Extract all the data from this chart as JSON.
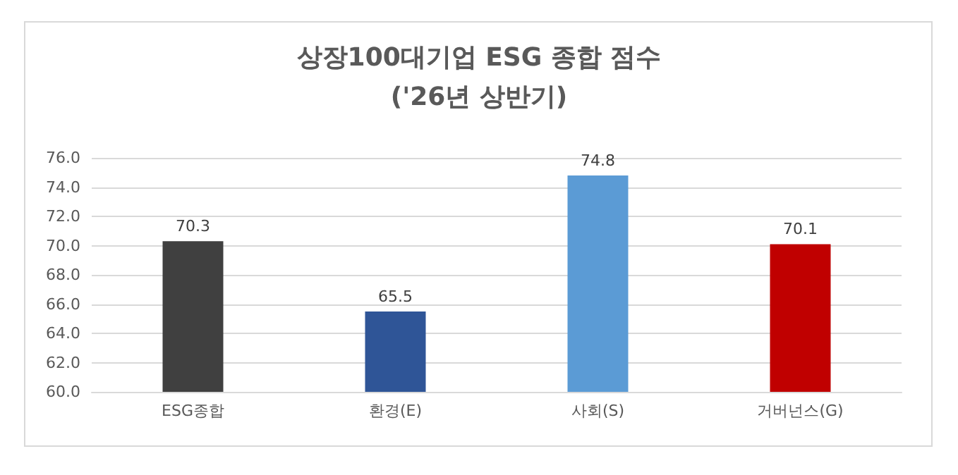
{
  "chart_data": {
    "type": "bar",
    "title": "상장100대기업 ESG 종합 점수",
    "subtitle": "('26년 상반기)",
    "categories": [
      "ESG종합",
      "환경(E)",
      "사회(S)",
      "거버넌스(G)"
    ],
    "values": [
      70.3,
      65.5,
      74.8,
      70.1
    ],
    "colors": [
      "#404040",
      "#2f5597",
      "#5b9bd5",
      "#c00000"
    ],
    "ylim": [
      60,
      76
    ],
    "yticks": [
      {
        "value": 60,
        "label": "60.0"
      },
      {
        "value": 62,
        "label": "62.0"
      },
      {
        "value": 64,
        "label": "64.0"
      },
      {
        "value": 66,
        "label": "66.0"
      },
      {
        "value": 68,
        "label": "68.0"
      },
      {
        "value": 70,
        "label": "70.0"
      },
      {
        "value": 72,
        "label": "72.0"
      },
      {
        "value": 74,
        "label": "74.0"
      },
      {
        "value": 76,
        "label": "76.0"
      }
    ],
    "grid": true,
    "data_labels": true
  }
}
